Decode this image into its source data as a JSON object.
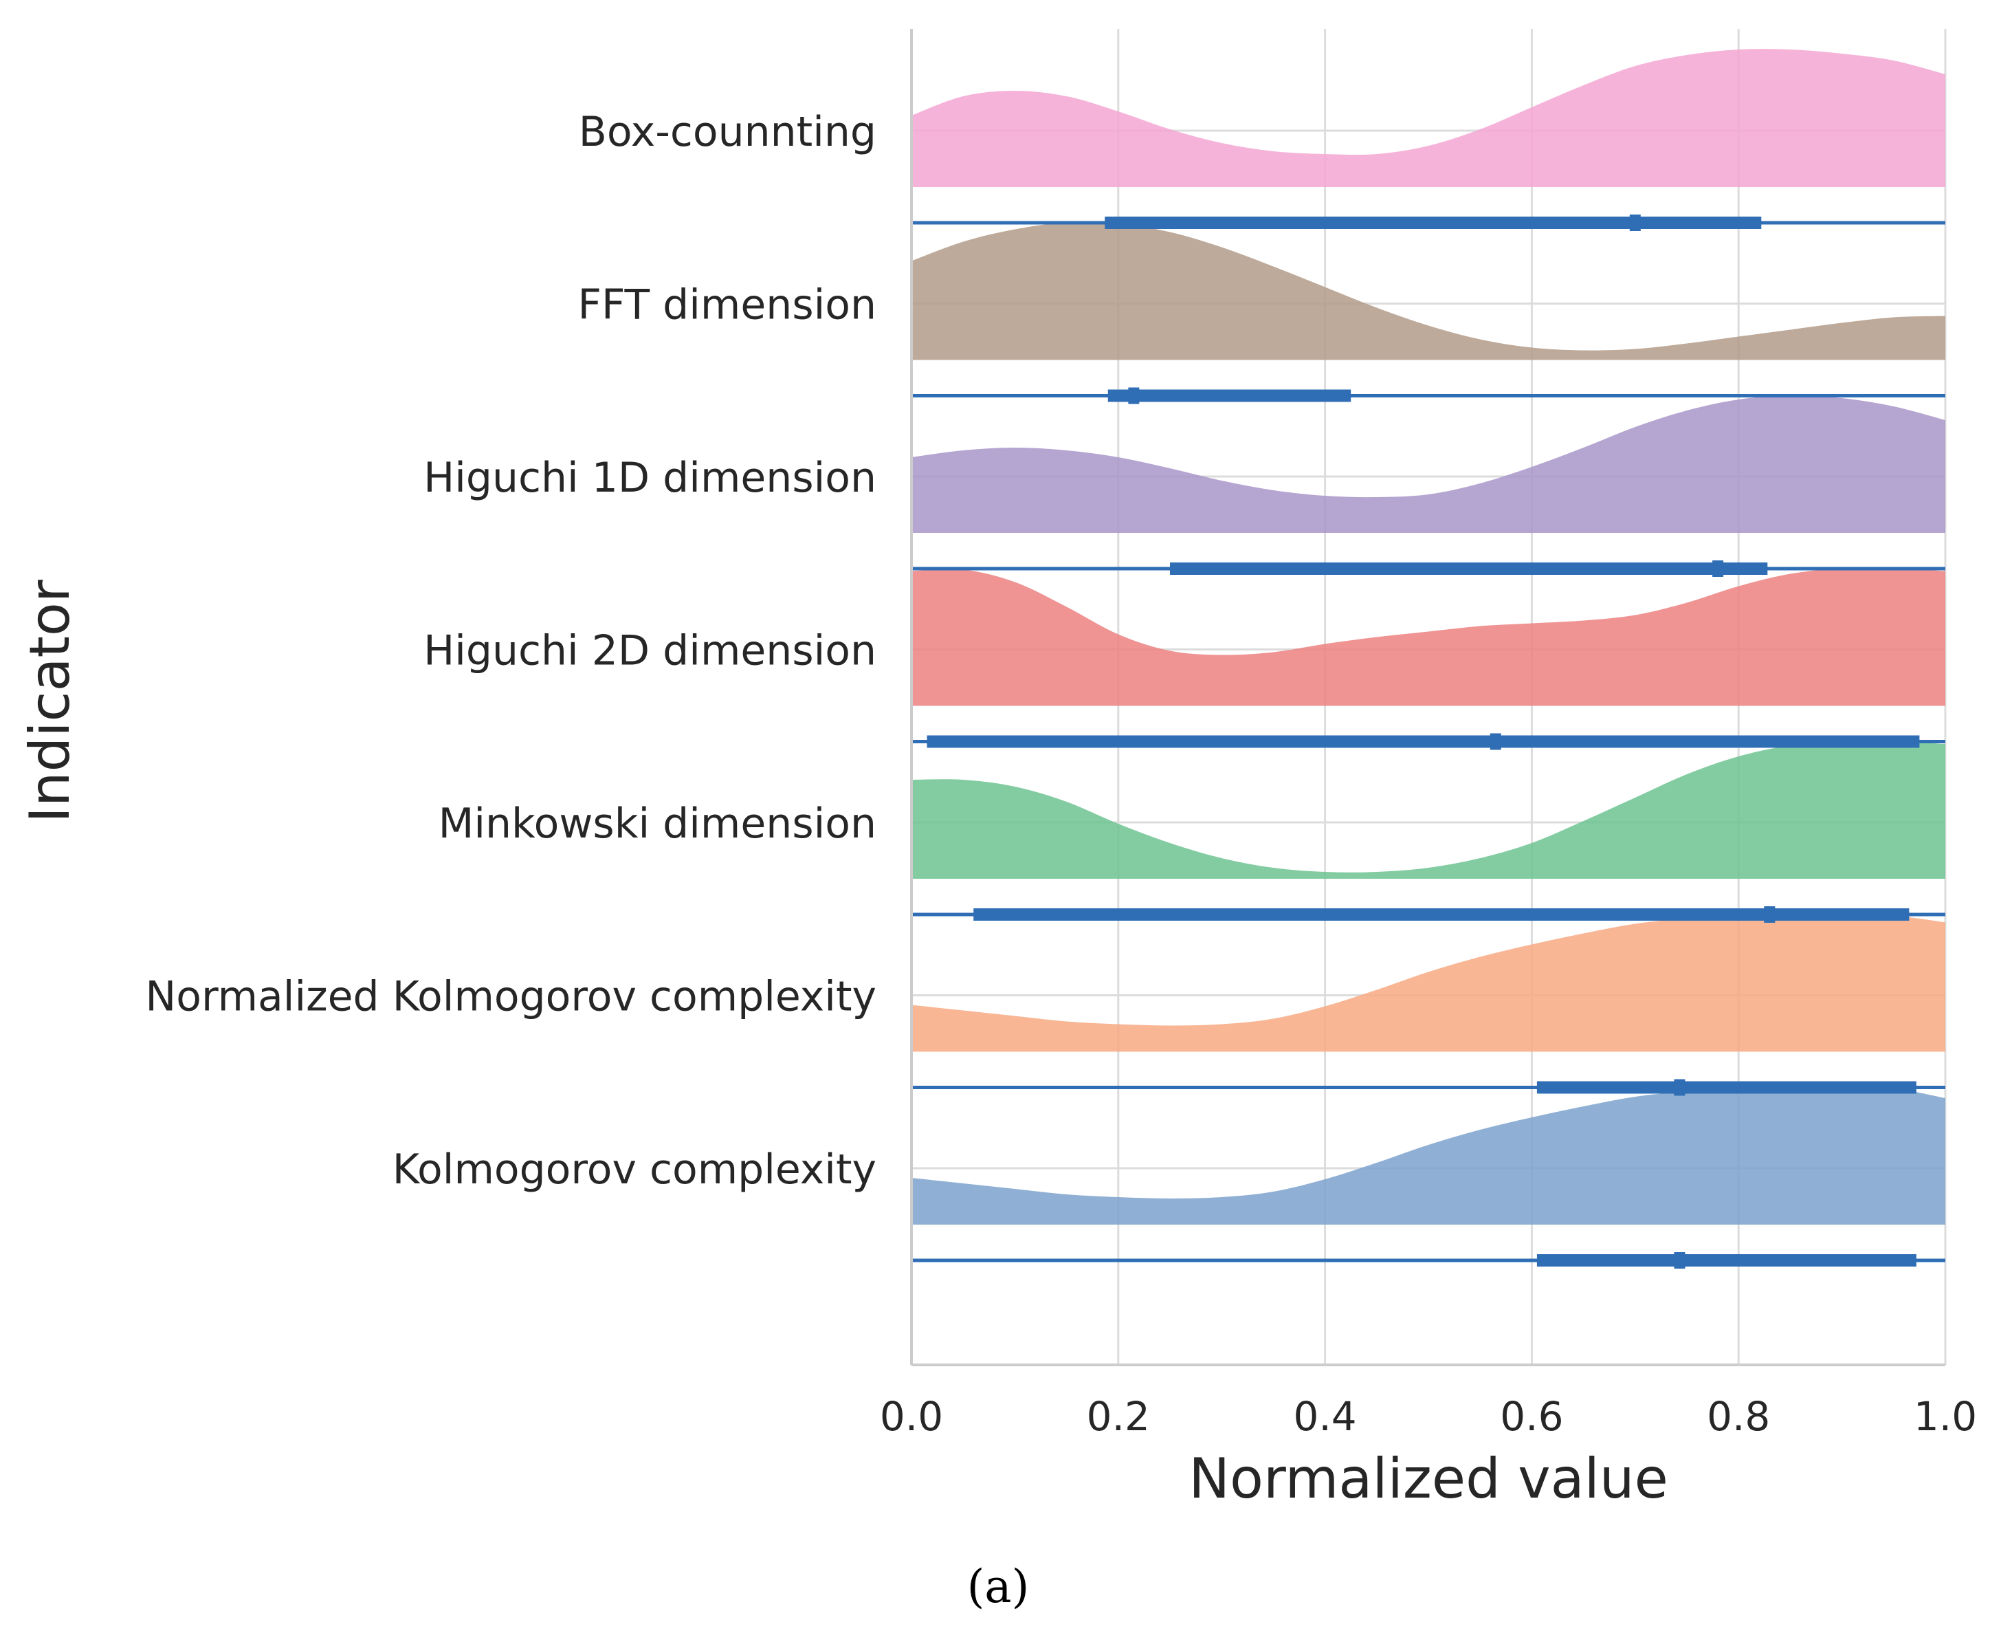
{
  "chart_data": {
    "type": "raincloud",
    "xlabel": "Normalized value",
    "ylabel": "Indicator",
    "xlim": [
      0.0,
      1.0
    ],
    "xticks": [
      "0.0",
      "0.2",
      "0.4",
      "0.6",
      "0.8",
      "1.0"
    ],
    "xtick_values": [
      0.0,
      0.2,
      0.4,
      0.6,
      0.8,
      1.0
    ],
    "grid": true,
    "panel_label": "(a)",
    "series": [
      {
        "name": "Box-counnting",
        "color": "#f4a6d2",
        "density": [
          [
            0.0,
            0.52
          ],
          [
            0.05,
            0.66
          ],
          [
            0.1,
            0.7
          ],
          [
            0.15,
            0.66
          ],
          [
            0.2,
            0.55
          ],
          [
            0.25,
            0.42
          ],
          [
            0.3,
            0.32
          ],
          [
            0.35,
            0.26
          ],
          [
            0.4,
            0.24
          ],
          [
            0.45,
            0.24
          ],
          [
            0.5,
            0.3
          ],
          [
            0.55,
            0.42
          ],
          [
            0.6,
            0.58
          ],
          [
            0.65,
            0.74
          ],
          [
            0.7,
            0.88
          ],
          [
            0.75,
            0.96
          ],
          [
            0.8,
            1.0
          ],
          [
            0.85,
            1.0
          ],
          [
            0.9,
            0.97
          ],
          [
            0.95,
            0.92
          ],
          [
            1.0,
            0.82
          ]
        ],
        "whisker": [
          0.0,
          1.0
        ],
        "box": [
          0.187,
          0.822
        ],
        "median": 0.7
      },
      {
        "name": "FFT dimension",
        "color": "#b39b88",
        "density": [
          [
            0.0,
            0.72
          ],
          [
            0.05,
            0.86
          ],
          [
            0.1,
            0.95
          ],
          [
            0.15,
            1.0
          ],
          [
            0.2,
            0.99
          ],
          [
            0.25,
            0.93
          ],
          [
            0.3,
            0.82
          ],
          [
            0.35,
            0.68
          ],
          [
            0.4,
            0.53
          ],
          [
            0.45,
            0.38
          ],
          [
            0.5,
            0.25
          ],
          [
            0.55,
            0.15
          ],
          [
            0.6,
            0.09
          ],
          [
            0.65,
            0.07
          ],
          [
            0.7,
            0.08
          ],
          [
            0.75,
            0.12
          ],
          [
            0.8,
            0.17
          ],
          [
            0.85,
            0.22
          ],
          [
            0.9,
            0.27
          ],
          [
            0.95,
            0.31
          ],
          [
            1.0,
            0.32
          ]
        ],
        "whisker": [
          0.0,
          1.0
        ],
        "box": [
          0.19,
          0.425
        ],
        "median": 0.215
      },
      {
        "name": "Higuchi 1D dimension",
        "color": "#a895c9",
        "density": [
          [
            0.0,
            0.55
          ],
          [
            0.05,
            0.6
          ],
          [
            0.1,
            0.62
          ],
          [
            0.15,
            0.6
          ],
          [
            0.2,
            0.55
          ],
          [
            0.25,
            0.47
          ],
          [
            0.3,
            0.38
          ],
          [
            0.35,
            0.31
          ],
          [
            0.4,
            0.27
          ],
          [
            0.45,
            0.26
          ],
          [
            0.5,
            0.28
          ],
          [
            0.55,
            0.36
          ],
          [
            0.6,
            0.48
          ],
          [
            0.65,
            0.62
          ],
          [
            0.7,
            0.77
          ],
          [
            0.75,
            0.89
          ],
          [
            0.8,
            0.97
          ],
          [
            0.85,
            1.0
          ],
          [
            0.9,
            0.98
          ],
          [
            0.95,
            0.92
          ],
          [
            1.0,
            0.82
          ]
        ],
        "whisker": [
          0.0,
          1.0
        ],
        "box": [
          0.25,
          0.828
        ],
        "median": 0.78
      },
      {
        "name": "Higuchi 2D dimension",
        "color": "#ec8080",
        "density": [
          [
            0.0,
            0.98
          ],
          [
            0.05,
            0.99
          ],
          [
            0.1,
            0.9
          ],
          [
            0.15,
            0.72
          ],
          [
            0.2,
            0.52
          ],
          [
            0.25,
            0.4
          ],
          [
            0.3,
            0.37
          ],
          [
            0.35,
            0.39
          ],
          [
            0.4,
            0.45
          ],
          [
            0.45,
            0.5
          ],
          [
            0.5,
            0.54
          ],
          [
            0.55,
            0.58
          ],
          [
            0.6,
            0.6
          ],
          [
            0.65,
            0.62
          ],
          [
            0.7,
            0.66
          ],
          [
            0.75,
            0.75
          ],
          [
            0.8,
            0.87
          ],
          [
            0.85,
            0.96
          ],
          [
            0.9,
            1.0
          ],
          [
            0.95,
            1.0
          ],
          [
            1.0,
            0.98
          ]
        ],
        "whisker": [
          0.0,
          1.0
        ],
        "box": [
          0.015,
          0.975
        ],
        "median": 0.565
      },
      {
        "name": "Minkowski dimension",
        "color": "#6dc392",
        "density": [
          [
            0.0,
            0.72
          ],
          [
            0.05,
            0.72
          ],
          [
            0.1,
            0.67
          ],
          [
            0.15,
            0.56
          ],
          [
            0.2,
            0.4
          ],
          [
            0.25,
            0.26
          ],
          [
            0.3,
            0.15
          ],
          [
            0.35,
            0.08
          ],
          [
            0.4,
            0.05
          ],
          [
            0.45,
            0.05
          ],
          [
            0.5,
            0.08
          ],
          [
            0.55,
            0.15
          ],
          [
            0.6,
            0.26
          ],
          [
            0.65,
            0.42
          ],
          [
            0.7,
            0.59
          ],
          [
            0.75,
            0.76
          ],
          [
            0.8,
            0.89
          ],
          [
            0.85,
            0.97
          ],
          [
            0.9,
            1.0
          ],
          [
            0.95,
            1.0
          ],
          [
            1.0,
            0.98
          ]
        ],
        "whisker": [
          0.0,
          1.0
        ],
        "box": [
          0.06,
          0.965
        ],
        "median": 0.83
      },
      {
        "name": "Normalized Kolmogorov complexity",
        "color": "#f7a983",
        "density": [
          [
            0.0,
            0.34
          ],
          [
            0.05,
            0.3
          ],
          [
            0.1,
            0.26
          ],
          [
            0.15,
            0.22
          ],
          [
            0.2,
            0.2
          ],
          [
            0.25,
            0.19
          ],
          [
            0.3,
            0.2
          ],
          [
            0.35,
            0.24
          ],
          [
            0.4,
            0.33
          ],
          [
            0.45,
            0.45
          ],
          [
            0.5,
            0.58
          ],
          [
            0.55,
            0.69
          ],
          [
            0.6,
            0.78
          ],
          [
            0.65,
            0.86
          ],
          [
            0.7,
            0.93
          ],
          [
            0.75,
            0.97
          ],
          [
            0.8,
            1.0
          ],
          [
            0.85,
            1.0
          ],
          [
            0.9,
            1.0
          ],
          [
            0.95,
            0.99
          ],
          [
            1.0,
            0.94
          ]
        ],
        "whisker": [
          0.0,
          1.0
        ],
        "box": [
          0.605,
          0.972
        ],
        "median": 0.743
      },
      {
        "name": "Kolmogorov complexity",
        "color": "#7ba2cc",
        "density": [
          [
            0.0,
            0.34
          ],
          [
            0.05,
            0.3
          ],
          [
            0.1,
            0.26
          ],
          [
            0.15,
            0.22
          ],
          [
            0.2,
            0.2
          ],
          [
            0.25,
            0.19
          ],
          [
            0.3,
            0.2
          ],
          [
            0.35,
            0.24
          ],
          [
            0.4,
            0.33
          ],
          [
            0.45,
            0.45
          ],
          [
            0.5,
            0.58
          ],
          [
            0.55,
            0.69
          ],
          [
            0.6,
            0.78
          ],
          [
            0.65,
            0.86
          ],
          [
            0.7,
            0.93
          ],
          [
            0.75,
            0.97
          ],
          [
            0.8,
            1.0
          ],
          [
            0.85,
            1.0
          ],
          [
            0.9,
            1.0
          ],
          [
            0.95,
            0.99
          ],
          [
            1.0,
            0.92
          ]
        ],
        "whisker": [
          0.0,
          1.0
        ],
        "box": [
          0.605,
          0.972
        ],
        "median": 0.743
      }
    ]
  },
  "colors": {
    "box_line": "#2f6db5",
    "grid": "#dcdcdc",
    "spine": "#cccccc"
  }
}
